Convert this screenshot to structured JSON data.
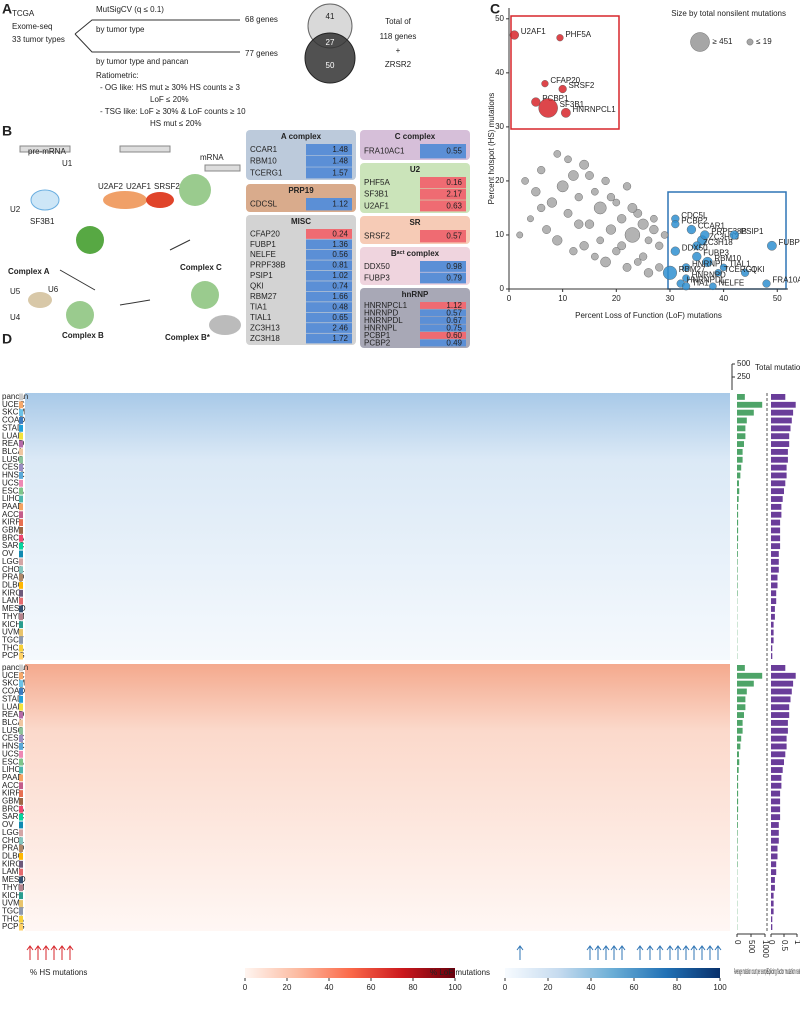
{
  "panel_a": {
    "letter": "A",
    "source": [
      "TCGA",
      "Exome-seq",
      "33 tumor types"
    ],
    "method1": "MutSigCV (q ≤ 0.1)",
    "method1_sub": "by tumor type",
    "method2_sub": "by tumor type and pancan",
    "ratiometric": "Ratiometric:",
    "og_like": [
      "- OG like: HS mut ≥ 30% HS counts ≥ 3",
      "LoF ≤ 20%"
    ],
    "tsg_like": [
      "- TSG like: LoF ≥ 30% & LoF counts ≥ 10",
      "HS mut ≤ 20%"
    ],
    "genes1": "68 genes",
    "genes2": "77 genes",
    "venn": [
      "41",
      "27",
      "50"
    ],
    "total": [
      "Total of",
      "118 genes",
      "+",
      "ZRSR2"
    ]
  },
  "panel_b": {
    "letter": "B",
    "diagram_labels": [
      "pre-mRNA",
      "U1",
      "U2AF2",
      "U2AF1",
      "SRSF2",
      "U2",
      "SF3B1",
      "mRNA",
      "Complex C",
      "Complex A",
      "U5",
      "U6",
      "U4",
      "Complex B",
      "Complex B*"
    ],
    "tables": [
      {
        "title": "A complex",
        "color": "#bccadb",
        "rows": [
          {
            "gene": "CCAR1",
            "value": "1.48",
            "color": "#5b8fd6"
          },
          {
            "gene": "RBM10",
            "value": "1.48",
            "color": "#5b8fd6"
          },
          {
            "gene": "TCERG1",
            "value": "1.57",
            "color": "#5b8fd6"
          }
        ]
      },
      {
        "title": "PRP19",
        "color": "#d9ab8c",
        "rows": [
          {
            "gene": "CDCSL",
            "value": "1.12",
            "color": "#5b8fd6"
          }
        ]
      },
      {
        "title": "MISC",
        "color": "#d3d3d3",
        "rows": [
          {
            "gene": "CFAP20",
            "value": "0.24",
            "color": "#ef6b72"
          },
          {
            "gene": "FUBP1",
            "value": "1.36",
            "color": "#5b8fd6"
          },
          {
            "gene": "NELFE",
            "value": "0.56",
            "color": "#5b8fd6"
          },
          {
            "gene": "PRPF38B",
            "value": "0.81",
            "color": "#5b8fd6"
          },
          {
            "gene": "PSIP1",
            "value": "1.02",
            "color": "#5b8fd6"
          },
          {
            "gene": "QKI",
            "value": "0.74",
            "color": "#5b8fd6"
          },
          {
            "gene": "RBM27",
            "value": "1.66",
            "color": "#5b8fd6"
          },
          {
            "gene": "TIA1",
            "value": "0.48",
            "color": "#5b8fd6"
          },
          {
            "gene": "TIAL1",
            "value": "0.65",
            "color": "#5b8fd6"
          },
          {
            "gene": "ZC3H13",
            "value": "2.46",
            "color": "#5b8fd6"
          },
          {
            "gene": "ZC3H18",
            "value": "1.72",
            "color": "#5b8fd6"
          }
        ]
      },
      {
        "title": "C complex",
        "color": "#d6bfd9",
        "rows": [
          {
            "gene": "FRA10AC1",
            "value": "0.55",
            "color": "#5b8fd6"
          }
        ]
      },
      {
        "title": "U2",
        "color": "#cbe4ba",
        "rows": [
          {
            "gene": "PHF5A",
            "value": "0.16",
            "color": "#ef6b72"
          },
          {
            "gene": "SF3B1",
            "value": "2.17",
            "color": "#ef6b72"
          },
          {
            "gene": "U2AF1",
            "value": "0.63",
            "color": "#ef6b72"
          }
        ]
      },
      {
        "title": "SR",
        "color": "#f6cbb6",
        "rows": [
          {
            "gene": "SRSF2",
            "value": "0.57",
            "color": "#ef6b72"
          }
        ]
      },
      {
        "title": "Bᵃᶜᵗ complex",
        "color": "#efd4de",
        "rows": [
          {
            "gene": "DDX50",
            "value": "0.98",
            "color": "#5b8fd6"
          },
          {
            "gene": "FUBP3",
            "value": "0.79",
            "color": "#5b8fd6"
          }
        ]
      },
      {
        "title": "hnRNP",
        "color": "#a8a8b6",
        "rows": [
          {
            "gene": "HNRNPCL1",
            "value": "1.12",
            "color": "#ef6b72"
          },
          {
            "gene": "HNRNPD",
            "value": "0.57",
            "color": "#5b8fd6"
          },
          {
            "gene": "HNRNPDL",
            "value": "0.67",
            "color": "#5b8fd6"
          },
          {
            "gene": "HNRNPL",
            "value": "0.75",
            "color": "#5b8fd6"
          },
          {
            "gene": "PCBP1",
            "value": "0.60",
            "color": "#ef6b72"
          },
          {
            "gene": "PCBP2",
            "value": "0.49",
            "color": "#5b8fd6"
          }
        ]
      }
    ]
  },
  "chart_data": [
    {
      "type": "scatter",
      "letter": "C",
      "xlabel": "Percent Loss of Function (LoF) mutations",
      "ylabel": "Percent hotspot (HS) mutations",
      "xlim": [
        0,
        52
      ],
      "ylim": [
        0,
        52
      ],
      "xticks": [
        0,
        10,
        20,
        30,
        40,
        50
      ],
      "yticks": [
        0,
        10,
        20,
        30,
        40,
        50
      ],
      "legend_title": "Size by total nonsilent mutations",
      "size_legend": [
        {
          "value": 451,
          "label": "≥ 451"
        },
        {
          "value": 19,
          "label": "≤ 19"
        }
      ],
      "series": [
        {
          "color": "#d7262b",
          "x": [
            1,
            9.5,
            6.7,
            10,
            5,
            7.3,
            10.6
          ],
          "y": [
            47,
            46.5,
            38,
            37,
            34.6,
            33.5,
            32.6
          ],
          "sizes": [
            60,
            25,
            25,
            40,
            60,
            451,
            70
          ],
          "labels": [
            "U2AF1",
            "PHF5A",
            "CFAP20",
            "SRSF2",
            "PCBP1",
            "SF3B1",
            "HNRNPCL1"
          ]
        },
        {
          "color": "#2f8fd0",
          "x": [
            31,
            31,
            34,
            36,
            36.5,
            35,
            42,
            49,
            31,
            35,
            37,
            33,
            40,
            44,
            30,
            39,
            33,
            32,
            33,
            38,
            48
          ],
          "y": [
            13,
            12,
            11,
            9,
            10,
            8,
            10,
            8,
            7,
            6,
            5,
            4,
            4,
            3,
            3,
            3,
            2,
            1,
            0.5,
            0.5,
            1
          ],
          "sizes": [
            40,
            40,
            60,
            80,
            60,
            50,
            60,
            70,
            60,
            60,
            80,
            40,
            30,
            40,
            200,
            30,
            30,
            40,
            40,
            30,
            40
          ],
          "labels": [
            "CDC5L",
            "PCBP2",
            "CCAR1",
            "ZC3H13",
            "PRPF38B",
            "ZC3H18",
            "PSIP1",
            "FUBP1",
            "DDX50",
            "FUBP3",
            "RBM10",
            "HNRNPL",
            "TIAL1",
            "QKI",
            "RBM27",
            "TCERG1",
            "HNRNPD",
            "HNRNPDL",
            "TIA1",
            "NELFE",
            "FRA10AC1"
          ]
        },
        {
          "color": "#a6a6a6",
          "x": [
            3,
            5,
            6,
            8,
            9,
            10,
            11,
            12,
            13,
            14,
            15,
            16,
            17,
            18,
            19,
            20,
            21,
            22,
            23,
            24,
            25,
            26,
            27,
            28,
            29,
            4,
            7,
            9,
            12,
            14,
            16,
            18,
            20,
            22,
            24,
            26,
            28,
            11,
            15,
            19,
            23,
            27,
            6,
            13,
            17,
            21,
            25,
            2
          ],
          "y": [
            20,
            18,
            22,
            16,
            25,
            19,
            14,
            21,
            17,
            23,
            12,
            18,
            15,
            20,
            11,
            16,
            13,
            19,
            10,
            14,
            12,
            9,
            11,
            8,
            10,
            13,
            11,
            9,
            7,
            8,
            6,
            5,
            7,
            4,
            5,
            3,
            4,
            24,
            21,
            17,
            15,
            13,
            15,
            12,
            9,
            8,
            6,
            10
          ],
          "sizes": [
            30,
            60,
            40,
            80,
            30,
            120,
            50,
            90,
            40,
            70,
            60,
            30,
            150,
            40,
            80,
            30,
            60,
            40,
            250,
            50,
            100,
            30,
            60,
            40,
            30,
            20,
            50,
            80,
            40,
            60,
            30,
            90,
            40,
            50,
            30,
            60,
            40,
            30,
            50,
            40,
            70,
            30,
            40,
            60,
            30,
            50,
            40,
            20
          ]
        }
      ]
    },
    {
      "type": "heatmap",
      "letter": "D",
      "rows": [
        "pancan",
        "UCEC",
        "SKCM",
        "COAD",
        "STAD",
        "LUAD",
        "READ",
        "BLCA",
        "LUSC",
        "CESC",
        "HNSC",
        "UCS",
        "ESCA",
        "LIHC",
        "PAAD",
        "ACC",
        "KIRP",
        "GBM",
        "BRCA",
        "SARC",
        "OV",
        "LGG",
        "CHOL",
        "PRAD",
        "DLBC",
        "KIRC",
        "LAML",
        "MESO",
        "THYM",
        "KICH",
        "UVM",
        "TGCT",
        "THCA",
        "PCPG"
      ],
      "row_colors": [
        "#cccccc",
        "#f7a96b",
        "#6cc3e8",
        "#3a7bbf",
        "#1f9fd8",
        "#f2e33b",
        "#b56aa8",
        "#f0c6a0",
        "#8bc39b",
        "#9b8ec4",
        "#5aa9d9",
        "#ee87b4",
        "#7ec58a",
        "#4db6ac",
        "#f4a261",
        "#c45c8a",
        "#e76f51",
        "#9c6644",
        "#ef476f",
        "#06d6a0",
        "#118ab2",
        "#d4a5a5",
        "#83c5be",
        "#b08968",
        "#ffb703",
        "#6d597a",
        "#e56b6f",
        "#355070",
        "#b5838d",
        "#2a9d8f",
        "#e9c46a",
        "#8d99ae",
        "#f7d038",
        "#ffd166"
      ],
      "top_axis": {
        "label": "Total mutation count per gene",
        "lim": [
          0,
          500
        ],
        "ticks": [
          250,
          500
        ]
      },
      "colorbars": [
        {
          "label": "% HS mutations",
          "colors": [
            "#fff5f0",
            "#fcbba1",
            "#fb6a4a",
            "#cb181d",
            "#67000d"
          ],
          "lim": [
            0,
            100
          ],
          "ticks": [
            0,
            20,
            40,
            60,
            80,
            100
          ]
        },
        {
          "label": "% LoF mutations",
          "colors": [
            "#f7fbff",
            "#c6dbef",
            "#6baed6",
            "#2171b5",
            "#08306b"
          ],
          "lim": [
            0,
            100
          ],
          "ticks": [
            0,
            20,
            40,
            60,
            80,
            100
          ]
        }
      ]
    },
    {
      "type": "bar",
      "orientation": "horizontal",
      "label": "Average mutation count per sample",
      "color": "#4ea468",
      "values": [
        280,
        900,
        600,
        350,
        300,
        300,
        250,
        200,
        200,
        150,
        120,
        70,
        80,
        60,
        40,
        40,
        40,
        40,
        40,
        30,
        30,
        20,
        20,
        20,
        20,
        20,
        10,
        10,
        10,
        10,
        10,
        10,
        10,
        10
      ],
      "xlim": [
        0,
        1000
      ],
      "xticks": [
        0,
        500,
        1000
      ]
    },
    {
      "type": "bar",
      "orientation": "horizontal",
      "label": "Splicing factor mutation rate",
      "color": "#6a3d9a",
      "values": [
        0.55,
        0.95,
        0.85,
        0.8,
        0.75,
        0.7,
        0.7,
        0.65,
        0.65,
        0.6,
        0.6,
        0.55,
        0.5,
        0.45,
        0.4,
        0.4,
        0.35,
        0.35,
        0.35,
        0.35,
        0.3,
        0.3,
        0.3,
        0.25,
        0.25,
        0.2,
        0.2,
        0.15,
        0.15,
        0.1,
        0.1,
        0.1,
        0.05,
        0.05
      ],
      "xlim": [
        0,
        1
      ],
      "xticks": [
        0,
        0.5,
        1
      ]
    }
  ]
}
